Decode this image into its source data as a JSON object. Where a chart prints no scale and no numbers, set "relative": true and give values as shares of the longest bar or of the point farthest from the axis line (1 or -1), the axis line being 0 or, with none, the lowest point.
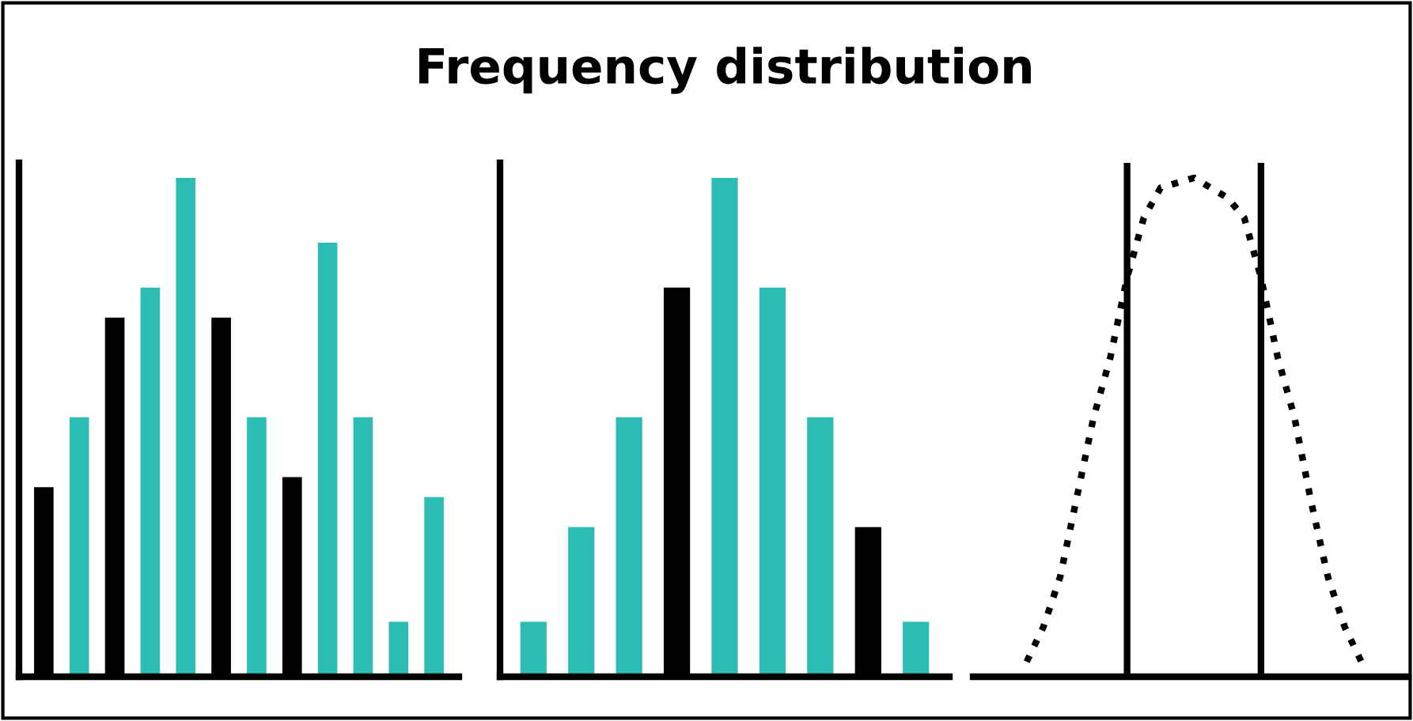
{
  "chart_data": [
    {
      "type": "bar",
      "relative": true,
      "categories": [
        null,
        null,
        null,
        null,
        null,
        null,
        null,
        null,
        null,
        null,
        null,
        null
      ],
      "values": [
        0.38,
        0.52,
        0.72,
        0.78,
        1,
        0.72,
        0.52,
        0.4,
        0.87,
        0.52,
        0.11,
        0.36
      ],
      "colors": [
        "#000000",
        "#2ebdb5",
        "#000000",
        "#2ebdb5",
        "#2ebdb5",
        "#000000",
        "#2ebdb5",
        "#000000",
        "#2ebdb5",
        "#2ebdb5",
        "#2ebdb5",
        "#2ebdb5"
      ]
    },
    {
      "type": "bar",
      "title": "Frequency distribution",
      "relative": true,
      "categories": [
        null,
        null,
        null,
        null,
        null,
        null,
        null,
        null,
        null
      ],
      "values": [
        0.11,
        0.3,
        0.52,
        0.78,
        1,
        0.78,
        0.52,
        0.3,
        0.11
      ],
      "colors": [
        "#2ebdb5",
        "#2ebdb5",
        "#2ebdb5",
        "#000000",
        "#2ebdb5",
        "#2ebdb5",
        "#2ebdb5",
        "#000000",
        "#2ebdb5"
      ]
    },
    {
      "type": "line",
      "relative": true,
      "line_style": "dotted",
      "marker": "none",
      "categories": [
        null,
        null,
        null,
        null,
        null,
        null,
        null,
        null,
        null,
        null,
        null,
        null,
        null,
        null,
        null,
        null,
        null,
        null,
        null,
        null,
        null
      ],
      "series": [
        {
          "color": "#000000",
          "values": [
            0.03,
            0.1,
            0.2,
            0.36,
            0.52,
            0.64,
            0.8,
            0.92,
            0.98,
            0.99,
            1,
            0.98,
            0.96,
            0.92,
            0.8,
            0.64,
            0.52,
            0.35,
            0.2,
            0.1,
            0.03
          ]
        }
      ]
    }
  ]
}
